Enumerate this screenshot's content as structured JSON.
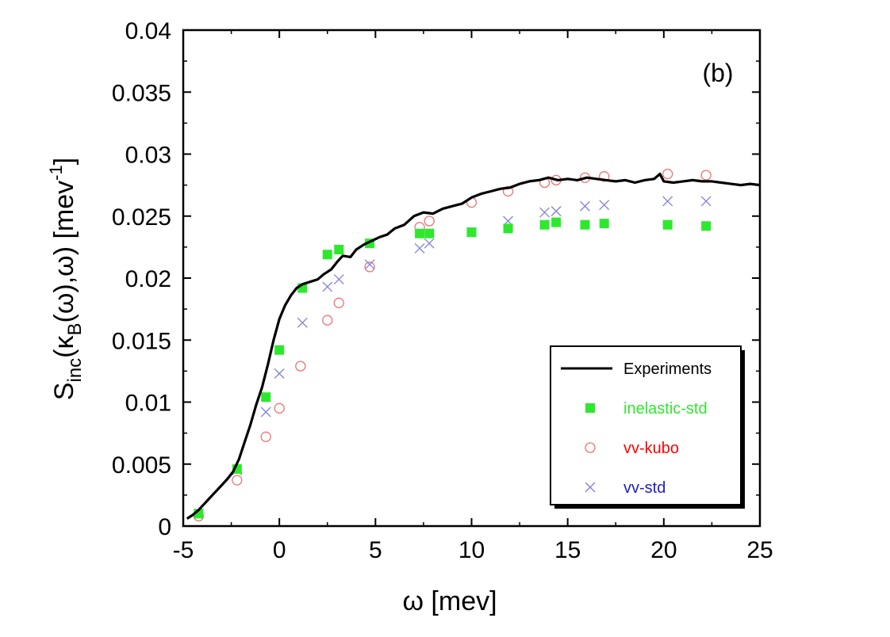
{
  "chart_data": {
    "type": "scatter",
    "panel_label": "(b)",
    "xlabel": "ω [mev]",
    "ylabel": {
      "main": "S",
      "sub1": "inc",
      "mid1": "(κ",
      "sub2": "B",
      "mid2": "(ω),ω) [mev",
      "sup": "-1",
      "end": "]"
    },
    "xlim": [
      -5,
      25
    ],
    "ylim": [
      0,
      0.04
    ],
    "x_ticks": [
      -5,
      0,
      5,
      10,
      15,
      20,
      25
    ],
    "x_tick_labels": [
      "-5",
      "0",
      "5",
      "10",
      "15",
      "20",
      "25"
    ],
    "y_ticks": [
      0,
      0.005,
      0.01,
      0.015,
      0.02,
      0.025,
      0.03,
      0.035,
      0.04
    ],
    "y_tick_labels": [
      "0",
      "0.005",
      "0.01",
      "0.015",
      "0.02",
      "0.025",
      "0.03",
      "0.035",
      "0.04"
    ],
    "grid": false,
    "legend_position": "bottom-right",
    "series": [
      {
        "name": "Experiments",
        "style": "line",
        "color": "#000000",
        "points": [
          [
            -4.8,
            0.0006
          ],
          [
            -4.5,
            0.0009
          ],
          [
            -4.2,
            0.0013
          ],
          [
            -3.9,
            0.0018
          ],
          [
            -3.6,
            0.0023
          ],
          [
            -3.3,
            0.0028
          ],
          [
            -3.0,
            0.0033
          ],
          [
            -2.7,
            0.0038
          ],
          [
            -2.4,
            0.0044
          ],
          [
            -2.1,
            0.0054
          ],
          [
            -1.8,
            0.0068
          ],
          [
            -1.5,
            0.0082
          ],
          [
            -1.2,
            0.0098
          ],
          [
            -0.9,
            0.0112
          ],
          [
            -0.6,
            0.013
          ],
          [
            -0.3,
            0.015
          ],
          [
            0.0,
            0.0167
          ],
          [
            0.3,
            0.0178
          ],
          [
            0.6,
            0.0186
          ],
          [
            0.9,
            0.0192
          ],
          [
            1.2,
            0.0195
          ],
          [
            1.6,
            0.0197
          ],
          [
            2.0,
            0.0199
          ],
          [
            2.3,
            0.0203
          ],
          [
            2.7,
            0.0207
          ],
          [
            3.0,
            0.0213
          ],
          [
            3.3,
            0.0218
          ],
          [
            3.7,
            0.0217
          ],
          [
            4.0,
            0.0223
          ],
          [
            4.4,
            0.0227
          ],
          [
            4.8,
            0.023
          ],
          [
            5.2,
            0.0233
          ],
          [
            5.6,
            0.0235
          ],
          [
            6.0,
            0.024
          ],
          [
            6.5,
            0.0243
          ],
          [
            7.0,
            0.025
          ],
          [
            7.5,
            0.0253
          ],
          [
            8.0,
            0.0252
          ],
          [
            8.5,
            0.0256
          ],
          [
            9.0,
            0.0258
          ],
          [
            9.5,
            0.026
          ],
          [
            10.0,
            0.0265
          ],
          [
            10.5,
            0.0268
          ],
          [
            11.0,
            0.027
          ],
          [
            11.5,
            0.0272
          ],
          [
            12.0,
            0.0273
          ],
          [
            12.5,
            0.0276
          ],
          [
            13.0,
            0.0278
          ],
          [
            13.5,
            0.0279
          ],
          [
            14.0,
            0.0281
          ],
          [
            14.5,
            0.0279
          ],
          [
            15.0,
            0.028
          ],
          [
            15.5,
            0.0279
          ],
          [
            16.0,
            0.0281
          ],
          [
            16.5,
            0.028
          ],
          [
            17.0,
            0.0279
          ],
          [
            17.5,
            0.0278
          ],
          [
            18.0,
            0.0279
          ],
          [
            18.5,
            0.0277
          ],
          [
            19.0,
            0.0279
          ],
          [
            19.5,
            0.028
          ],
          [
            19.8,
            0.0284
          ],
          [
            20.0,
            0.0278
          ],
          [
            20.5,
            0.0277
          ],
          [
            21.0,
            0.0278
          ],
          [
            21.5,
            0.0279
          ],
          [
            22.0,
            0.0278
          ],
          [
            22.5,
            0.0278
          ],
          [
            23.0,
            0.0277
          ],
          [
            23.5,
            0.0276
          ],
          [
            24.0,
            0.0275
          ],
          [
            24.5,
            0.0276
          ],
          [
            25.0,
            0.0275
          ]
        ]
      },
      {
        "name": "inelastic-std",
        "style": "filled-square",
        "color": "#2ee82e",
        "points": [
          [
            -4.2,
            0.001
          ],
          [
            -2.2,
            0.0046
          ],
          [
            -0.7,
            0.0104
          ],
          [
            0.0,
            0.0142
          ],
          [
            1.2,
            0.0192
          ],
          [
            2.5,
            0.0219
          ],
          [
            3.1,
            0.0223
          ],
          [
            4.7,
            0.0228
          ],
          [
            7.3,
            0.0236
          ],
          [
            7.8,
            0.0236
          ],
          [
            10.0,
            0.0237
          ],
          [
            11.9,
            0.024
          ],
          [
            13.8,
            0.0243
          ],
          [
            14.4,
            0.0245
          ],
          [
            15.9,
            0.0243
          ],
          [
            16.9,
            0.0244
          ],
          [
            20.2,
            0.0243
          ],
          [
            22.2,
            0.0242
          ]
        ]
      },
      {
        "name": "vv-kubo",
        "style": "open-circle",
        "color": "#f07070",
        "points": [
          [
            -4.2,
            0.0008
          ],
          [
            -2.2,
            0.0037
          ],
          [
            -0.7,
            0.0072
          ],
          [
            0.0,
            0.0095
          ],
          [
            1.1,
            0.0129
          ],
          [
            2.5,
            0.0166
          ],
          [
            3.1,
            0.018
          ],
          [
            4.7,
            0.0209
          ],
          [
            7.3,
            0.0241
          ],
          [
            7.8,
            0.0246
          ],
          [
            10.0,
            0.0261
          ],
          [
            11.9,
            0.027
          ],
          [
            13.8,
            0.0277
          ],
          [
            14.4,
            0.0279
          ],
          [
            15.9,
            0.0281
          ],
          [
            16.9,
            0.0282
          ],
          [
            20.2,
            0.0284
          ],
          [
            22.2,
            0.0283
          ]
        ]
      },
      {
        "name": "vv-std",
        "style": "cross",
        "color": "#8080e0",
        "points": [
          [
            -4.2,
            0.001
          ],
          [
            -2.2,
            0.0045
          ],
          [
            -0.7,
            0.0092
          ],
          [
            0.0,
            0.0123
          ],
          [
            1.2,
            0.0164
          ],
          [
            2.5,
            0.0193
          ],
          [
            3.1,
            0.0199
          ],
          [
            4.7,
            0.0211
          ],
          [
            7.3,
            0.0224
          ],
          [
            7.8,
            0.0228
          ],
          [
            10.0,
            0.0237
          ],
          [
            11.9,
            0.0246
          ],
          [
            13.8,
            0.0253
          ],
          [
            14.4,
            0.0254
          ],
          [
            15.9,
            0.0258
          ],
          [
            16.9,
            0.0259
          ],
          [
            20.2,
            0.0262
          ],
          [
            22.2,
            0.0262
          ]
        ]
      }
    ],
    "legend_text_colors": [
      "#000000",
      "#2ee82e",
      "#ff0000",
      "#2020c0"
    ]
  }
}
